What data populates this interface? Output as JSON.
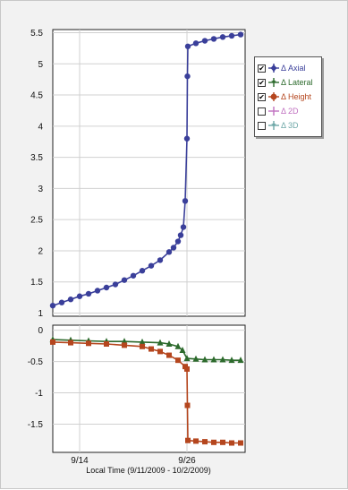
{
  "chart_data": [
    {
      "type": "line",
      "panel": "top",
      "title": "",
      "xlabel": "",
      "ylabel": "",
      "ylim": [
        0.95,
        5.55
      ],
      "yticks": [
        "5.5",
        "5",
        "4.5",
        "4",
        "3.5",
        "3",
        "2.5",
        "2",
        "1.5",
        "1"
      ],
      "grid": true,
      "series": [
        {
          "name": "Δ Axial",
          "color": "#3a3f9a",
          "x": [
            11.0,
            12.0,
            13.0,
            14.0,
            15.0,
            16.0,
            17.0,
            18.0,
            19.0,
            20.0,
            21.0,
            22.0,
            23.0,
            24.0,
            24.5,
            25.0,
            25.3,
            25.6,
            25.8,
            26.0,
            26.05,
            26.1,
            27.0,
            28.0,
            29.0,
            30.0,
            31.0,
            32.0
          ],
          "y": [
            1.12,
            1.17,
            1.22,
            1.27,
            1.31,
            1.36,
            1.41,
            1.46,
            1.53,
            1.6,
            1.68,
            1.76,
            1.85,
            1.98,
            2.05,
            2.15,
            2.25,
            2.38,
            2.8,
            3.8,
            4.8,
            5.28,
            5.33,
            5.37,
            5.4,
            5.43,
            5.45,
            5.47
          ]
        }
      ]
    },
    {
      "type": "line",
      "panel": "bottom",
      "title": "",
      "xlabel": "Local Time (9/11/2009 - 10/2/2009)",
      "ylabel": "",
      "ylim": [
        -1.95,
        0.08
      ],
      "yticks": [
        "0",
        "-0.5",
        "-1",
        "-1.5"
      ],
      "xticks": [
        {
          "label": "9/14",
          "x": 14
        },
        {
          "label": "9/26",
          "x": 26
        }
      ],
      "xlim": [
        11,
        32.5
      ],
      "grid": true,
      "series": [
        {
          "name": "Δ Lateral",
          "color": "#2c6a2c",
          "x": [
            11.0,
            13.0,
            15.0,
            17.0,
            19.0,
            21.0,
            23.0,
            24.0,
            25.0,
            25.5,
            26.0,
            27.0,
            28.0,
            29.0,
            30.0,
            31.0,
            32.0
          ],
          "y": [
            -0.15,
            -0.16,
            -0.17,
            -0.18,
            -0.18,
            -0.19,
            -0.2,
            -0.22,
            -0.26,
            -0.32,
            -0.45,
            -0.46,
            -0.47,
            -0.47,
            -0.47,
            -0.48,
            -0.48
          ]
        },
        {
          "name": "Δ Height",
          "color": "#b5461e",
          "x": [
            11.0,
            13.0,
            15.0,
            17.0,
            19.0,
            21.0,
            22.0,
            23.0,
            24.0,
            25.0,
            25.8,
            26.0,
            26.05,
            26.1,
            27.0,
            28.0,
            29.0,
            30.0,
            31.0,
            32.0
          ],
          "y": [
            -0.19,
            -0.2,
            -0.21,
            -0.22,
            -0.24,
            -0.26,
            -0.3,
            -0.34,
            -0.4,
            -0.48,
            -0.58,
            -0.62,
            -1.2,
            -1.76,
            -1.77,
            -1.78,
            -1.79,
            -1.79,
            -1.8,
            -1.8
          ]
        }
      ]
    }
  ],
  "legend": [
    {
      "label": "Δ Axial",
      "checked": true,
      "check": "✔",
      "color": "#3a3f9a",
      "marker": "plus-diamond"
    },
    {
      "label": "Δ Lateral",
      "checked": true,
      "check": "✔",
      "color": "#2c6a2c",
      "marker": "plus-star"
    },
    {
      "label": "Δ Height",
      "checked": true,
      "check": "✔",
      "color": "#b5461e",
      "marker": "plus-circle"
    },
    {
      "label": "Δ 2D",
      "checked": false,
      "check": "",
      "color": "#c070c0",
      "marker": "plus"
    },
    {
      "label": "Δ 3D",
      "checked": false,
      "check": "",
      "color": "#6fa8a8",
      "marker": "plus-star"
    }
  ]
}
